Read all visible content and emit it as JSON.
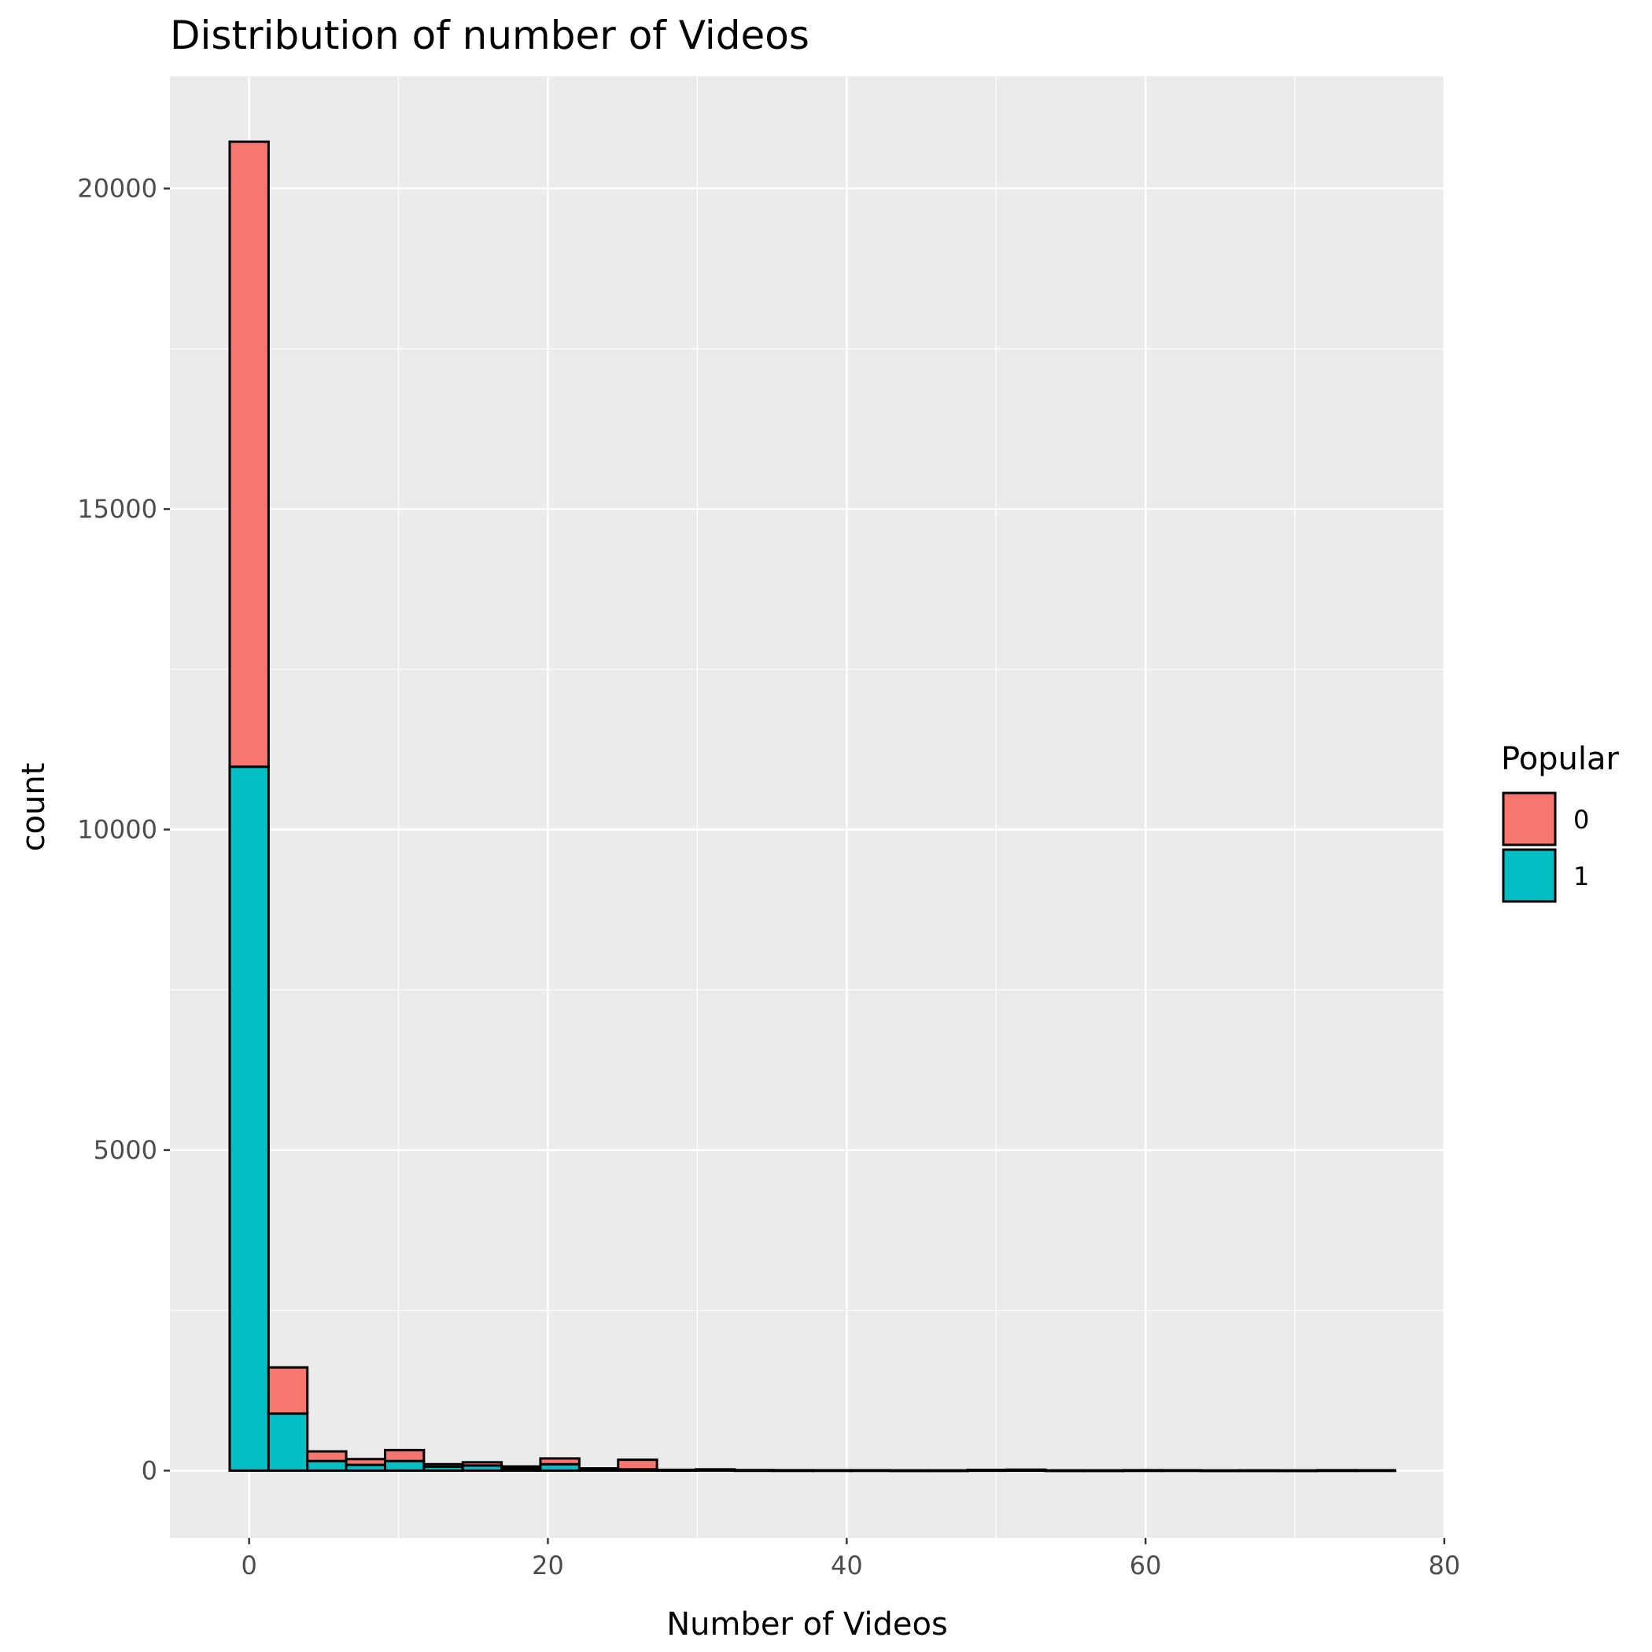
{
  "chart_data": {
    "type": "bar",
    "title": "Distribution of number of Videos",
    "xlabel": "Number of Videos",
    "ylabel": "count",
    "xlim": [
      -5.3,
      80.0
    ],
    "ylim": [
      -1050,
      21750
    ],
    "x_ticks": [
      0,
      20,
      40,
      60,
      80
    ],
    "x_tick_labels": [
      "0",
      "20",
      "40",
      "60",
      "80"
    ],
    "y_ticks": [
      0,
      5000,
      10000,
      15000,
      20000
    ],
    "y_tick_labels": [
      "0",
      "5000",
      "10000",
      "15000",
      "20000"
    ],
    "grid": true,
    "stacked": true,
    "bin_width": 2.6,
    "bin_centers": [
      0.0,
      2.6,
      5.2,
      7.8,
      10.4,
      13.0,
      15.6,
      18.2,
      20.8,
      23.4,
      26.0,
      28.6,
      31.2,
      33.8,
      36.4,
      39.0,
      41.6,
      44.2,
      46.8,
      49.4,
      52.0,
      54.6,
      57.2,
      59.8,
      62.4,
      65.0,
      67.6,
      70.2,
      72.8,
      75.4
    ],
    "legend": {
      "title": "Popular",
      "position": "right"
    },
    "series": [
      {
        "name": "0",
        "color": "#F8766D",
        "values": [
          9750,
          720,
          150,
          90,
          170,
          40,
          50,
          35,
          90,
          25,
          150,
          8,
          12,
          6,
          5,
          4,
          4,
          3,
          3,
          8,
          10,
          3,
          3,
          5,
          4,
          2,
          3,
          2,
          5,
          4
        ]
      },
      {
        "name": "1",
        "color": "#00BFC4",
        "values": [
          10980,
          890,
          150,
          90,
          150,
          60,
          80,
          30,
          100,
          10,
          20,
          5,
          8,
          3,
          2,
          2,
          2,
          1,
          1,
          4,
          5,
          1,
          1,
          2,
          2,
          1,
          1,
          1,
          2,
          2
        ]
      }
    ]
  }
}
